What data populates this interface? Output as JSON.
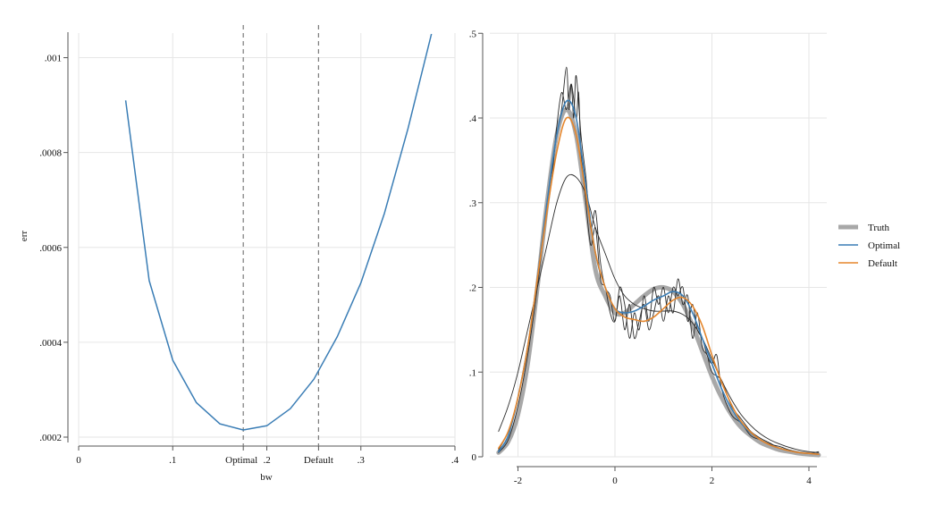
{
  "colors": {
    "truth": "#a8a8a8",
    "optimal": "#3a7db5",
    "default": "#e5862c",
    "replicate": "#2b2b2b",
    "grid": "#e6e6e6",
    "axis": "#555555",
    "refline": "#7a7a7a"
  },
  "chart_data": [
    {
      "type": "line",
      "xlabel": "bw",
      "ylabel": "err",
      "xlim": [
        0,
        0.4
      ],
      "ylim": [
        0.0002,
        0.00105
      ],
      "xticks": [
        {
          "value": 0,
          "label": "0"
        },
        {
          "value": 0.1,
          "label": ".1"
        },
        {
          "value": 0.175,
          "label": "Optimal"
        },
        {
          "value": 0.2,
          "label": ".2"
        },
        {
          "value": 0.255,
          "label": "Default"
        },
        {
          "value": 0.3,
          "label": ".3"
        },
        {
          "value": 0.4,
          "label": ".4"
        }
      ],
      "yticks": [
        {
          "value": 0.0002,
          "label": ".0002"
        },
        {
          "value": 0.0004,
          "label": ".0004"
        },
        {
          "value": 0.0006,
          "label": ".0006"
        },
        {
          "value": 0.0008,
          "label": ".0008"
        },
        {
          "value": 0.001,
          "label": ".001"
        }
      ],
      "grid": true,
      "reference_lines": [
        {
          "name": "Optimal",
          "x": 0.175
        },
        {
          "name": "Default",
          "x": 0.255
        }
      ],
      "series": [
        {
          "color": "#3a7db5",
          "x": [
            0.05,
            0.075,
            0.1,
            0.125,
            0.15,
            0.175,
            0.2,
            0.225,
            0.25,
            0.275,
            0.3,
            0.325,
            0.35,
            0.375
          ],
          "y": [
            0.00091,
            0.00053,
            0.000362,
            0.000273,
            0.000228,
            0.000215,
            0.000224,
            0.00026,
            0.000322,
            0.000412,
            0.000525,
            0.000672,
            0.00085,
            0.00105
          ]
        }
      ]
    },
    {
      "type": "line",
      "xlim": [
        -2.5,
        4.2
      ],
      "ylim": [
        0,
        0.5
      ],
      "xticks": [
        {
          "value": -2,
          "label": "-2"
        },
        {
          "value": 0,
          "label": "0"
        },
        {
          "value": 2,
          "label": "2"
        },
        {
          "value": 4,
          "label": "4"
        }
      ],
      "yticks": [
        {
          "value": 0,
          "label": "0"
        },
        {
          "value": 0.1,
          "label": ".1"
        },
        {
          "value": 0.2,
          "label": ".2"
        },
        {
          "value": 0.3,
          "label": ".3"
        },
        {
          "value": 0.4,
          "label": ".4"
        },
        {
          "value": 0.5,
          "label": ".5"
        }
      ],
      "grid": true,
      "legend_position": "right",
      "legend": [
        "Truth",
        "Optimal",
        "Default"
      ],
      "series": [
        {
          "name": "Truth",
          "color": "#a8a8a8",
          "x": [
            -2.4,
            -2.2,
            -2.0,
            -1.8,
            -1.6,
            -1.4,
            -1.2,
            -1.0,
            -0.8,
            -0.6,
            -0.4,
            -0.2,
            0.0,
            0.2,
            0.4,
            0.6,
            0.8,
            1.0,
            1.2,
            1.4,
            1.6,
            1.8,
            2.0,
            2.2,
            2.4,
            2.6,
            2.8,
            3.0,
            3.2,
            3.4,
            3.6,
            3.8,
            4.0,
            4.2
          ],
          "y": [
            0.005,
            0.018,
            0.05,
            0.11,
            0.2,
            0.3,
            0.38,
            0.41,
            0.38,
            0.3,
            0.22,
            0.19,
            0.17,
            0.17,
            0.18,
            0.19,
            0.198,
            0.2,
            0.195,
            0.18,
            0.155,
            0.125,
            0.095,
            0.07,
            0.05,
            0.035,
            0.025,
            0.017,
            0.012,
            0.008,
            0.006,
            0.004,
            0.003,
            0.002
          ]
        },
        {
          "name": "Optimal",
          "color": "#3a7db5",
          "x": [
            -2.4,
            -2.2,
            -2.0,
            -1.8,
            -1.6,
            -1.4,
            -1.2,
            -1.0,
            -0.8,
            -0.6,
            -0.4,
            -0.2,
            0.0,
            0.2,
            0.4,
            0.6,
            0.8,
            1.0,
            1.2,
            1.4,
            1.6,
            1.8,
            2.0,
            2.2,
            2.4,
            2.6,
            2.8,
            3.0,
            3.2,
            3.4,
            3.6,
            3.8,
            4.0,
            4.2
          ],
          "y": [
            0.006,
            0.025,
            0.07,
            0.13,
            0.21,
            0.3,
            0.38,
            0.42,
            0.4,
            0.32,
            0.24,
            0.2,
            0.175,
            0.17,
            0.172,
            0.178,
            0.185,
            0.19,
            0.195,
            0.19,
            0.17,
            0.14,
            0.11,
            0.08,
            0.057,
            0.04,
            0.028,
            0.02,
            0.014,
            0.01,
            0.007,
            0.005,
            0.004,
            0.003
          ]
        },
        {
          "name": "Default",
          "color": "#e5862c",
          "x": [
            -2.4,
            -2.2,
            -2.0,
            -1.8,
            -1.6,
            -1.4,
            -1.2,
            -1.0,
            -0.8,
            -0.6,
            -0.4,
            -0.2,
            0.0,
            0.2,
            0.4,
            0.6,
            0.8,
            1.0,
            1.2,
            1.4,
            1.6,
            1.8,
            2.0,
            2.2,
            2.4,
            2.6,
            2.8,
            3.0,
            3.2,
            3.4,
            3.6,
            3.8,
            4.0,
            4.2
          ],
          "y": [
            0.01,
            0.03,
            0.07,
            0.13,
            0.21,
            0.29,
            0.36,
            0.4,
            0.38,
            0.31,
            0.24,
            0.2,
            0.175,
            0.165,
            0.162,
            0.16,
            0.165,
            0.175,
            0.185,
            0.188,
            0.178,
            0.155,
            0.12,
            0.088,
            0.062,
            0.042,
            0.029,
            0.02,
            0.014,
            0.01,
            0.007,
            0.005,
            0.004,
            0.003
          ]
        },
        {
          "color": "#2b2b2b",
          "x": [
            -2.4,
            -2.2,
            -2.0,
            -1.8,
            -1.6,
            -1.4,
            -1.2,
            -1.0,
            -0.8,
            -0.6,
            -0.4,
            -0.2,
            0.0,
            0.2,
            0.4,
            0.6,
            0.8,
            1.0,
            1.2,
            1.4,
            1.6,
            1.8,
            2.0,
            2.2,
            2.4,
            2.6,
            2.8,
            3.0,
            3.2,
            3.4,
            3.6,
            3.8,
            4.0,
            4.2
          ],
          "y": [
            0.03,
            0.06,
            0.1,
            0.15,
            0.2,
            0.25,
            0.3,
            0.33,
            0.33,
            0.31,
            0.27,
            0.24,
            0.21,
            0.19,
            0.18,
            0.175,
            0.172,
            0.172,
            0.172,
            0.168,
            0.158,
            0.14,
            0.115,
            0.09,
            0.068,
            0.05,
            0.037,
            0.027,
            0.02,
            0.015,
            0.011,
            0.008,
            0.006,
            0.005
          ]
        },
        {
          "color": "#2b2b2b",
          "x": [
            -2.4,
            -2.2,
            -2.0,
            -1.8,
            -1.6,
            -1.4,
            -1.3,
            -1.2,
            -1.1,
            -1.0,
            -0.95,
            -0.9,
            -0.85,
            -0.8,
            -0.7,
            -0.6,
            -0.5,
            -0.4,
            -0.3,
            -0.2,
            -0.1,
            0.0,
            0.1,
            0.2,
            0.3,
            0.4,
            0.5,
            0.6,
            0.7,
            0.8,
            0.9,
            1.0,
            1.1,
            1.2,
            1.3,
            1.4,
            1.5,
            1.6,
            1.7,
            1.8,
            1.9,
            2.0,
            2.1,
            2.2,
            2.4,
            2.6,
            2.8,
            3.0,
            3.2,
            3.4,
            3.6,
            3.8,
            4.0,
            4.2
          ],
          "y": [
            0.005,
            0.02,
            0.06,
            0.12,
            0.2,
            0.3,
            0.34,
            0.38,
            0.41,
            0.46,
            0.41,
            0.44,
            0.4,
            0.45,
            0.38,
            0.33,
            0.27,
            0.29,
            0.23,
            0.2,
            0.19,
            0.16,
            0.2,
            0.18,
            0.14,
            0.17,
            0.15,
            0.19,
            0.16,
            0.2,
            0.18,
            0.2,
            0.17,
            0.2,
            0.19,
            0.2,
            0.16,
            0.18,
            0.15,
            0.14,
            0.12,
            0.11,
            0.12,
            0.08,
            0.05,
            0.04,
            0.025,
            0.02,
            0.015,
            0.012,
            0.008,
            0.005,
            0.004,
            0.003
          ]
        },
        {
          "color": "#2b2b2b",
          "x": [
            -2.4,
            -2.2,
            -2.0,
            -1.8,
            -1.6,
            -1.4,
            -1.3,
            -1.2,
            -1.1,
            -1.0,
            -0.9,
            -0.8,
            -0.75,
            -0.7,
            -0.6,
            -0.5,
            -0.4,
            -0.3,
            -0.2,
            -0.1,
            0.0,
            0.1,
            0.2,
            0.3,
            0.4,
            0.5,
            0.6,
            0.7,
            0.8,
            0.9,
            1.0,
            1.1,
            1.2,
            1.3,
            1.4,
            1.5,
            1.6,
            1.7,
            1.8,
            1.9,
            2.0,
            2.2,
            2.4,
            2.6,
            2.8,
            3.0,
            3.2,
            3.4,
            3.6,
            3.8,
            4.0,
            4.2
          ],
          "y": [
            0.008,
            0.03,
            0.07,
            0.13,
            0.21,
            0.29,
            0.33,
            0.39,
            0.43,
            0.41,
            0.44,
            0.4,
            0.43,
            0.36,
            0.3,
            0.25,
            0.27,
            0.21,
            0.2,
            0.17,
            0.16,
            0.19,
            0.15,
            0.18,
            0.14,
            0.16,
            0.18,
            0.15,
            0.17,
            0.19,
            0.16,
            0.19,
            0.17,
            0.21,
            0.18,
            0.19,
            0.14,
            0.17,
            0.13,
            0.12,
            0.1,
            0.09,
            0.06,
            0.045,
            0.03,
            0.022,
            0.016,
            0.01,
            0.007,
            0.005,
            0.004,
            0.006
          ]
        }
      ]
    }
  ]
}
